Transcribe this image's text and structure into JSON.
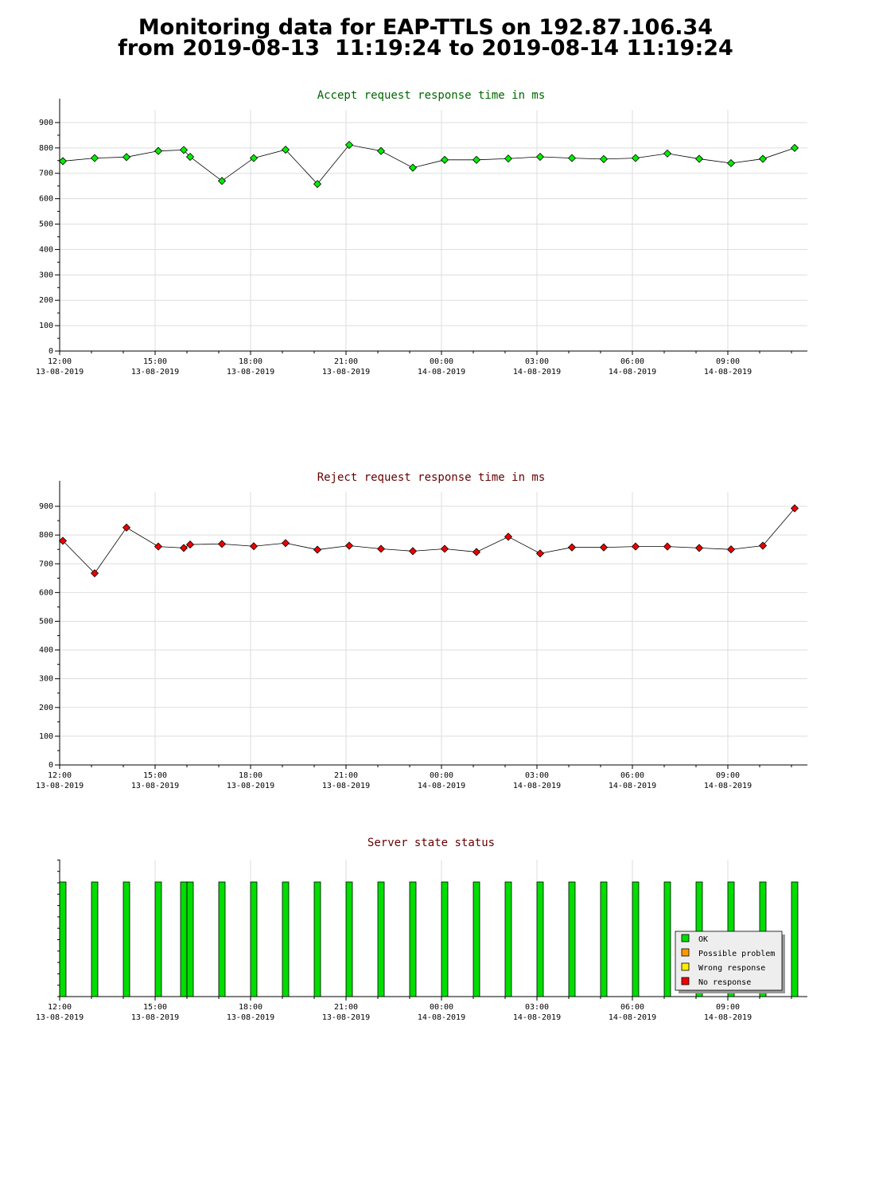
{
  "page": {
    "title_line1": "Monitoring data for EAP-TTLS on 192.87.106.34",
    "title_line2": "from 2019-08-13  11:19:24 to 2019-08-14 11:19:24"
  },
  "colors": {
    "accept_title": "#006600",
    "reject_title": "#660000",
    "status_title": "#660000",
    "accept_marker": "#00ee00",
    "reject_marker": "#ee0000",
    "grid": "#dddddd",
    "ok": "#00dd00",
    "possible_problem": "#ff9900",
    "wrong_response": "#ffee00",
    "no_response": "#ee0000"
  },
  "x_ticks": [
    {
      "time": "12:00",
      "date": "13-08-2019"
    },
    {
      "time": "15:00",
      "date": "13-08-2019"
    },
    {
      "time": "18:00",
      "date": "13-08-2019"
    },
    {
      "time": "21:00",
      "date": "13-08-2019"
    },
    {
      "time": "00:00",
      "date": "14-08-2019"
    },
    {
      "time": "03:00",
      "date": "14-08-2019"
    },
    {
      "time": "06:00",
      "date": "14-08-2019"
    },
    {
      "time": "09:00",
      "date": "14-08-2019"
    }
  ],
  "chart_data": [
    {
      "type": "line",
      "title": "Accept request response time in ms",
      "ylim": [
        0,
        950
      ],
      "yticks": [
        0,
        100,
        200,
        300,
        400,
        500,
        600,
        700,
        800,
        900
      ],
      "grid": true,
      "x_unit": "hours since 13-08-2019 12:00",
      "xlim": [
        0,
        23.5
      ],
      "x": [
        0.1,
        1.1,
        2.1,
        3.1,
        3.9,
        4.1,
        5.1,
        6.1,
        7.1,
        8.1,
        9.1,
        10.1,
        11.1,
        12.1,
        13.1,
        14.1,
        15.1,
        16.1,
        17.1,
        18.1,
        19.1,
        20.1,
        21.1,
        22.1,
        23.1
      ],
      "values": [
        748,
        760,
        764,
        788,
        792,
        765,
        670,
        760,
        793,
        658,
        812,
        788,
        722,
        753,
        753,
        758,
        765,
        760,
        756,
        760,
        778,
        757,
        740,
        757,
        800
      ]
    },
    {
      "type": "line",
      "title": "Reject request response time in ms",
      "ylim": [
        0,
        950
      ],
      "yticks": [
        0,
        100,
        200,
        300,
        400,
        500,
        600,
        700,
        800,
        900
      ],
      "grid": true,
      "x_unit": "hours since 13-08-2019 12:00",
      "xlim": [
        0,
        23.5
      ],
      "x": [
        0.1,
        1.1,
        2.1,
        3.1,
        3.9,
        4.1,
        5.1,
        6.1,
        7.1,
        8.1,
        9.1,
        10.1,
        11.1,
        12.1,
        13.1,
        14.1,
        15.1,
        16.1,
        17.1,
        18.1,
        19.1,
        20.1,
        21.1,
        22.1,
        23.1
      ],
      "values": [
        780,
        667,
        826,
        760,
        755,
        767,
        769,
        761,
        772,
        749,
        763,
        752,
        744,
        752,
        741,
        794,
        736,
        757,
        757,
        760,
        760,
        755,
        750,
        763,
        893
      ]
    },
    {
      "type": "bar",
      "title": "Server state status",
      "x_unit": "hours since 13-08-2019 12:00",
      "xlim": [
        0,
        23.5
      ],
      "x": [
        0.1,
        1.1,
        2.1,
        3.1,
        3.9,
        4.1,
        5.1,
        6.1,
        7.1,
        8.1,
        9.1,
        10.1,
        11.1,
        12.1,
        13.1,
        14.1,
        15.1,
        16.1,
        17.1,
        18.1,
        19.1,
        20.1,
        21.1,
        22.1,
        23.1
      ],
      "status": [
        "OK",
        "OK",
        "OK",
        "OK",
        "OK",
        "OK",
        "OK",
        "OK",
        "OK",
        "OK",
        "OK",
        "OK",
        "OK",
        "OK",
        "OK",
        "OK",
        "OK",
        "OK",
        "OK",
        "OK",
        "OK",
        "OK",
        "OK",
        "OK",
        "OK"
      ],
      "legend": [
        "OK",
        "Possible problem",
        "Wrong response",
        "No response"
      ],
      "legend_position": "bottom-right"
    }
  ]
}
